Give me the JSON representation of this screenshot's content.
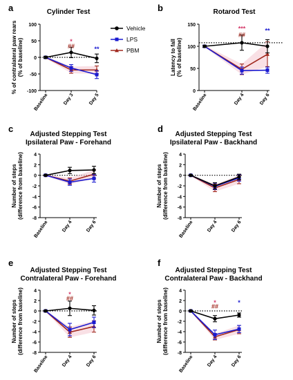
{
  "legend": {
    "entries": [
      {
        "name": "Vehicle",
        "color": "#000000",
        "marker": "circle"
      },
      {
        "name": "LPS",
        "color": "#1a1ad0",
        "marker": "square"
      },
      {
        "name": "PBM",
        "color": "#a0281e",
        "marker": "triangle"
      }
    ],
    "placement": "right of panel a"
  },
  "chart_data": [
    {
      "panel": "a",
      "type": "line",
      "title": "Cylinder Test",
      "xlabel": "",
      "ylabel": "% of contralateral paw rears\n(% of baseline)",
      "categories": [
        "Baseline",
        "Day 3",
        "Day 5"
      ],
      "ylim": [
        -100,
        100
      ],
      "yticks": [
        -100,
        -50,
        0,
        50,
        100
      ],
      "ref_line": 0,
      "series": [
        {
          "name": "Vehicle",
          "values": [
            0,
            15,
            -3
          ],
          "err": [
            3,
            16,
            13
          ]
        },
        {
          "name": "LPS",
          "values": [
            0,
            -32,
            -52
          ],
          "err": [
            3,
            10,
            12
          ]
        },
        {
          "name": "PBM",
          "values": [
            0,
            -38,
            -38
          ],
          "err": [
            3,
            10,
            12
          ]
        }
      ],
      "annotations": [
        {
          "x": "Day 3",
          "text": "*",
          "color": "#d43a6a",
          "y": 48
        },
        {
          "x": "Day 3",
          "text": "##",
          "color": "#a0281e",
          "y": 33
        },
        {
          "x": "Day 5",
          "text": "**",
          "color": "#1a1ad0",
          "y": 25
        }
      ]
    },
    {
      "panel": "b",
      "type": "line",
      "title": "Rotarod Test",
      "xlabel": "",
      "ylabel": "Latency to fall\n(% of baseline)",
      "categories": [
        "Baseline",
        "Day 4",
        "Day 6"
      ],
      "ylim": [
        0,
        150
      ],
      "yticks": [
        0,
        50,
        100,
        150
      ],
      "ref_line": 108,
      "series": [
        {
          "name": "Vehicle",
          "values": [
            100,
            108,
            100
          ],
          "err": [
            2,
            17,
            15
          ]
        },
        {
          "name": "LPS",
          "values": [
            100,
            45,
            46
          ],
          "err": [
            2,
            8,
            7
          ]
        },
        {
          "name": "PBM",
          "values": [
            100,
            48,
            82
          ],
          "err": [
            2,
            12,
            28
          ]
        }
      ],
      "annotations": [
        {
          "x": "Day 4",
          "text": "***",
          "color": "#d43a6a",
          "y": 140
        },
        {
          "x": "Day 4",
          "text": "##",
          "color": "#a0281e",
          "y": 126
        },
        {
          "x": "Day 6",
          "text": "**",
          "color": "#1a1ad0",
          "y": 135
        }
      ]
    },
    {
      "panel": "c",
      "type": "line",
      "title": "Adjusted Stepping Test",
      "subtitle": "Ipsilateral Paw - Forehand",
      "xlabel": "",
      "ylabel": "Number of steps\n(difference from baseline)",
      "categories": [
        "Baseline",
        "Day 4",
        "Day 6"
      ],
      "ylim": [
        -8,
        4
      ],
      "yticks": [
        -8,
        -6,
        -4,
        -2,
        0,
        2,
        4
      ],
      "ref_line": 0,
      "series": [
        {
          "name": "Vehicle",
          "values": [
            0,
            0.9,
            1.0
          ],
          "err": [
            0.1,
            0.6,
            0.7
          ]
        },
        {
          "name": "LPS",
          "values": [
            0,
            -1.3,
            -0.6
          ],
          "err": [
            0.1,
            0.6,
            0.7
          ]
        },
        {
          "name": "PBM",
          "values": [
            0,
            -1.1,
            0.2
          ],
          "err": [
            0.1,
            0.6,
            0.8
          ]
        }
      ],
      "annotations": []
    },
    {
      "panel": "d",
      "type": "line",
      "title": "Adjusted Stepping Test",
      "subtitle": "Ipsilateral Paw - Backhand",
      "xlabel": "",
      "ylabel": "Number of steps\n(difference from baseline)",
      "categories": [
        "Baseline",
        "Day 4",
        "Day 6"
      ],
      "ylim": [
        -8,
        4
      ],
      "yticks": [
        -8,
        -6,
        -4,
        -2,
        0,
        2,
        4
      ],
      "ref_line": 0,
      "series": [
        {
          "name": "Vehicle",
          "values": [
            0,
            -2.0,
            -0.3
          ],
          "err": [
            0.1,
            0.6,
            0.5
          ]
        },
        {
          "name": "LPS",
          "values": [
            0,
            -2.1,
            -0.5
          ],
          "err": [
            0.1,
            0.6,
            0.6
          ]
        },
        {
          "name": "PBM",
          "values": [
            0,
            -2.4,
            -0.8
          ],
          "err": [
            0.1,
            0.7,
            0.8
          ]
        }
      ],
      "annotations": []
    },
    {
      "panel": "e",
      "type": "line",
      "title": "Adjusted Stepping Test",
      "subtitle": "Contralateral Paw - Forehand",
      "xlabel": "",
      "ylabel": "Number of steps\n(difference from baseline)",
      "categories": [
        "Baseline",
        "Day 4",
        "Day 6"
      ],
      "ylim": [
        -8,
        4
      ],
      "yticks": [
        -8,
        -6,
        -4,
        -2,
        0,
        2,
        4
      ],
      "ref_line": 0,
      "series": [
        {
          "name": "Vehicle",
          "values": [
            0,
            0.5,
            0.1
          ],
          "err": [
            0.1,
            1.4,
            0.9
          ]
        },
        {
          "name": "LPS",
          "values": [
            0,
            -3.6,
            -2.2
          ],
          "err": [
            0.1,
            1.2,
            1.0
          ]
        },
        {
          "name": "PBM",
          "values": [
            0,
            -4.1,
            -3.0
          ],
          "err": [
            0.1,
            1.0,
            1.1
          ]
        }
      ],
      "annotations": [
        {
          "x": "Day 4",
          "text": "*",
          "color": "#d43a6a",
          "y": 3.2
        },
        {
          "x": "Day 4",
          "text": "##",
          "color": "#a0281e",
          "y": 2.4
        }
      ]
    },
    {
      "panel": "f",
      "type": "line",
      "title": "Adjusted Stepping Test",
      "subtitle": "Contralateral Paw - Backhand",
      "xlabel": "",
      "ylabel": "Number of steps\n(difference from baseline)",
      "categories": [
        "Baseline",
        "Day 4",
        "Day 6"
      ],
      "ylim": [
        -8,
        4
      ],
      "yticks": [
        -8,
        -6,
        -4,
        -2,
        0,
        2,
        4
      ],
      "ref_line": 0,
      "series": [
        {
          "name": "Vehicle",
          "values": [
            0,
            -1.5,
            -0.8
          ],
          "err": [
            0.1,
            0.6,
            0.4
          ]
        },
        {
          "name": "LPS",
          "values": [
            0,
            -4.6,
            -3.5
          ],
          "err": [
            0.1,
            0.9,
            0.7
          ]
        },
        {
          "name": "PBM",
          "values": [
            0,
            -5.0,
            -3.6
          ],
          "err": [
            0.1,
            0.6,
            0.8
          ]
        }
      ],
      "annotations": [
        {
          "x": "Day 4",
          "text": "*",
          "color": "#d43a6a",
          "y": 1.6
        },
        {
          "x": "Day 4",
          "text": "##",
          "color": "#a0281e",
          "y": 0.9
        },
        {
          "x": "Day 6",
          "text": "*",
          "color": "#1a1ad0",
          "y": 1.6
        }
      ]
    }
  ]
}
